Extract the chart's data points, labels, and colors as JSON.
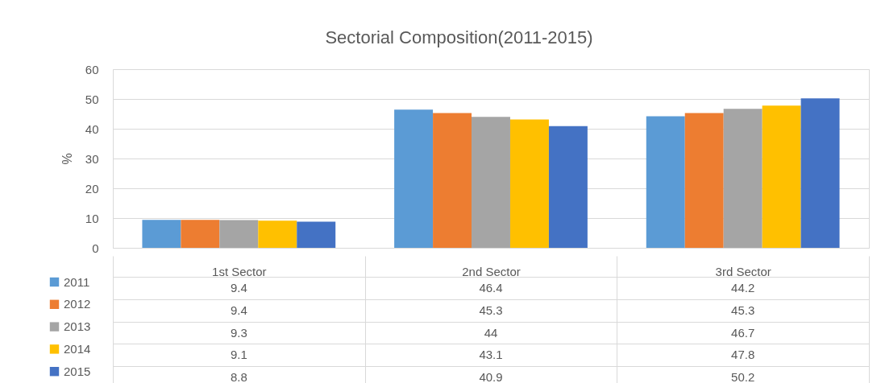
{
  "chart_data": {
    "type": "bar",
    "title": "Sectorial Composition(2011-2015)",
    "ylabel": "%",
    "categories": [
      "1st Sector",
      "2nd Sector",
      "3rd Sector"
    ],
    "series": [
      {
        "name": "2011",
        "color": "#5b9bd5",
        "values": [
          9.4,
          46.4,
          44.2
        ]
      },
      {
        "name": "2012",
        "color": "#ed7d31",
        "values": [
          9.4,
          45.3,
          45.3
        ]
      },
      {
        "name": "2013",
        "color": "#a5a5a5",
        "values": [
          9.3,
          44,
          46.7
        ]
      },
      {
        "name": "2014",
        "color": "#ffc000",
        "values": [
          9.1,
          43.1,
          47.8
        ]
      },
      {
        "name": "2015",
        "color": "#4472c4",
        "values": [
          8.8,
          40.9,
          50.2
        ]
      }
    ],
    "ylim": [
      0,
      60
    ],
    "yticks": [
      0,
      10,
      20,
      30,
      40,
      50,
      60
    ],
    "grid": "y",
    "legend": "bottom left",
    "data_labels": true
  }
}
